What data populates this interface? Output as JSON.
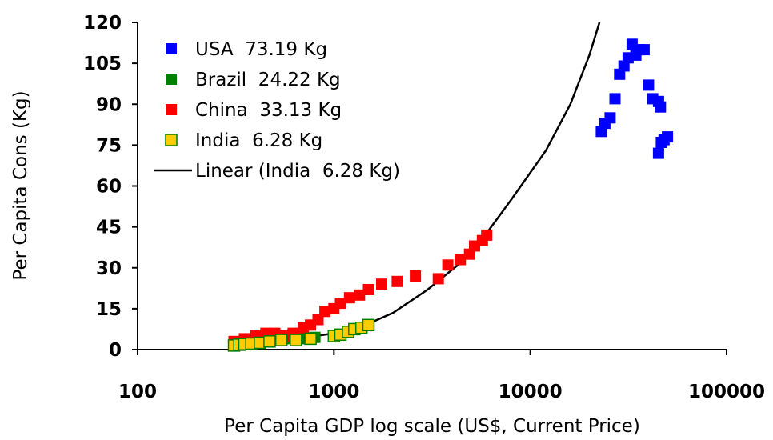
{
  "chart_data": {
    "type": "scatter",
    "title": "",
    "xlabel": "Per Capita GDP log scale (US$, Current Price)",
    "ylabel": "Per Capita Cons (Kg)",
    "x_scale": "log",
    "xlim": [
      100,
      100000
    ],
    "ylim": [
      0,
      120
    ],
    "x_ticks": [
      100,
      1000,
      10000,
      100000
    ],
    "x_tick_labels": [
      "100",
      "1000",
      "10000",
      "100000"
    ],
    "y_ticks": [
      0,
      15,
      30,
      45,
      60,
      75,
      90,
      105,
      120
    ],
    "y_tick_labels": [
      "0",
      "15",
      "30",
      "45",
      "60",
      "75",
      "90",
      "105",
      "120"
    ],
    "grid": false,
    "legend_position": "top-left",
    "series": [
      {
        "name": "USA  73.19 Kg",
        "color": "#0000ff",
        "marker": "square",
        "points": [
          [
            23000,
            80
          ],
          [
            24000,
            83
          ],
          [
            25500,
            85
          ],
          [
            27000,
            92
          ],
          [
            28500,
            101
          ],
          [
            30000,
            104
          ],
          [
            31500,
            107
          ],
          [
            33000,
            112
          ],
          [
            34500,
            108
          ],
          [
            36000,
            110
          ],
          [
            38000,
            110
          ],
          [
            40000,
            97
          ],
          [
            42000,
            92
          ],
          [
            45000,
            91
          ],
          [
            46000,
            89
          ],
          [
            45000,
            72
          ],
          [
            46500,
            76
          ],
          [
            48000,
            77
          ],
          [
            50000,
            78
          ]
        ]
      },
      {
        "name": "Brazil  24.22 Kg",
        "color": "#008000",
        "marker": "square",
        "points": [
          [
            330,
            2
          ],
          [
            360,
            2
          ],
          [
            390,
            2.5
          ],
          [
            430,
            3
          ],
          [
            470,
            3
          ],
          [
            520,
            3.5
          ],
          [
            600,
            4
          ],
          [
            700,
            4
          ],
          [
            800,
            4.5
          ]
        ]
      },
      {
        "name": "China  33.13 Kg",
        "color": "#ff0000",
        "marker": "square",
        "points": [
          [
            310,
            3
          ],
          [
            350,
            4
          ],
          [
            400,
            5
          ],
          [
            450,
            6
          ],
          [
            500,
            6
          ],
          [
            560,
            5
          ],
          [
            620,
            6
          ],
          [
            700,
            8
          ],
          [
            760,
            9
          ],
          [
            830,
            11
          ],
          [
            900,
            14
          ],
          [
            1000,
            15
          ],
          [
            1080,
            17
          ],
          [
            1200,
            19
          ],
          [
            1350,
            20
          ],
          [
            1500,
            22
          ],
          [
            1750,
            24
          ],
          [
            2100,
            25
          ],
          [
            2600,
            27
          ],
          [
            3400,
            26
          ],
          [
            3800,
            31
          ],
          [
            4400,
            33
          ],
          [
            4900,
            35
          ],
          [
            5200,
            38
          ],
          [
            5700,
            40
          ],
          [
            6000,
            42
          ]
        ]
      },
      {
        "name": "India  6.28 Kg",
        "color": "#ffcc00",
        "edge_color": "#008000",
        "marker": "square",
        "points": [
          [
            310,
            1.5
          ],
          [
            330,
            1.8
          ],
          [
            350,
            2
          ],
          [
            380,
            2.2
          ],
          [
            420,
            2.5
          ],
          [
            470,
            3
          ],
          [
            540,
            3.5
          ],
          [
            640,
            3.5
          ],
          [
            760,
            4
          ],
          [
            1000,
            5
          ],
          [
            1080,
            5.5
          ],
          [
            1180,
            6.5
          ],
          [
            1270,
            7.5
          ],
          [
            1380,
            8
          ],
          [
            1500,
            9
          ]
        ]
      },
      {
        "name": "Linear (India  6.28 Kg)",
        "color": "#000000",
        "type": "line",
        "points": [
          [
            310,
            1.4
          ],
          [
            500,
            2.8
          ],
          [
            1000,
            6.0
          ],
          [
            1500,
            9.5
          ],
          [
            2000,
            13.5
          ],
          [
            3000,
            22
          ],
          [
            5000,
            35
          ],
          [
            8000,
            55
          ],
          [
            12000,
            73
          ],
          [
            16000,
            90
          ],
          [
            20000,
            108
          ],
          [
            22500,
            120
          ]
        ]
      }
    ]
  }
}
